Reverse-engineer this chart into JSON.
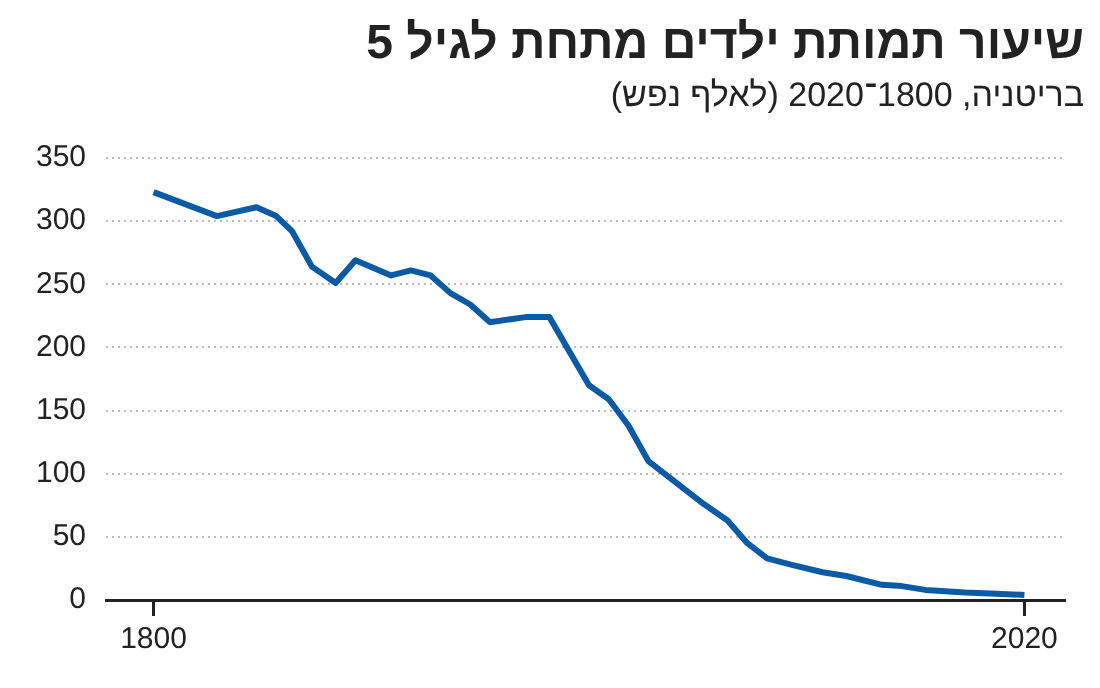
{
  "chart_data": {
    "type": "line",
    "title": "שיעור תמותת ילדים מתחת לגיל 5",
    "subtitle": "בריטניה, 1800־2020 (לאלף נפש)",
    "x": [
      1800,
      1816,
      1826,
      1831,
      1835,
      1840,
      1846,
      1851,
      1860,
      1865,
      1870,
      1875,
      1880,
      1885,
      1894,
      1900,
      1910,
      1915,
      1920,
      1925,
      1939,
      1945,
      1950,
      1955,
      1961,
      1969,
      1975,
      1984,
      1989,
      1995,
      2005,
      2013,
      2020
    ],
    "series": [
      {
        "color": "#0b5aa5",
        "values": [
          323,
          304,
          311,
          304,
          292,
          264,
          251,
          269,
          257,
          261,
          257,
          243,
          234,
          220,
          224,
          224,
          170,
          159,
          138,
          110,
          76,
          63,
          45,
          33,
          28,
          22,
          19,
          12,
          11,
          8,
          6,
          5,
          4
        ]
      }
    ],
    "xlim": [
      1788,
      2030
    ],
    "xticks": [
      1800,
      2020
    ],
    "ylim": [
      0,
      350
    ],
    "yticks": [
      0,
      50,
      100,
      150,
      200,
      250,
      300,
      350
    ],
    "grid": "y",
    "marker": "none",
    "line_style": "solid"
  }
}
